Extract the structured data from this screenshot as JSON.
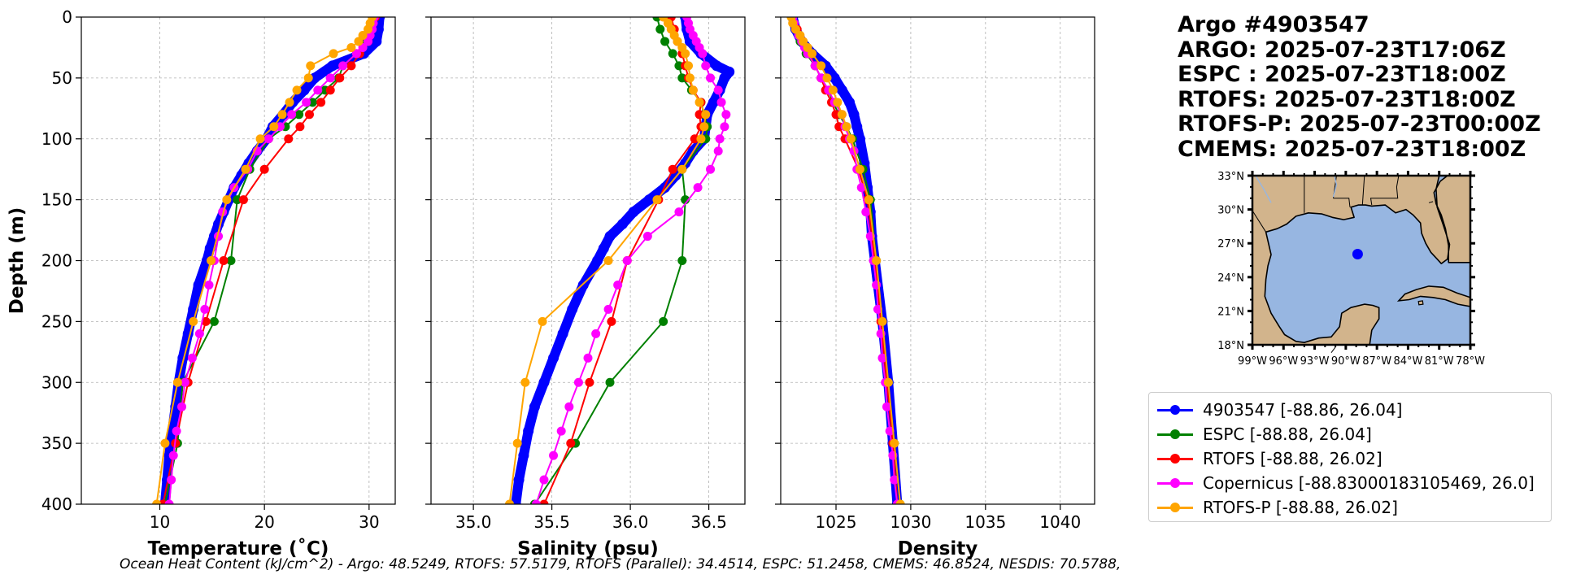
{
  "chart_data": [
    {
      "type": "line",
      "panel": "temperature",
      "xlabel": "Temperature (˚C)",
      "ylabel": "Depth (m)",
      "xlim": [
        2.5,
        32.5
      ],
      "ylim": [
        400,
        0
      ],
      "xticks": [
        10,
        20,
        30
      ],
      "yticks": [
        0,
        50,
        100,
        150,
        200,
        250,
        300,
        350,
        400
      ],
      "grid": true,
      "series": [
        {
          "name": "4903547",
          "color": "#0000ff",
          "style": "thick",
          "depth": [
            0,
            10,
            20,
            30,
            40,
            50,
            60,
            70,
            80,
            90,
            100,
            110,
            120,
            130,
            140,
            150,
            160,
            170,
            180,
            190,
            200,
            220,
            240,
            260,
            280,
            300,
            320,
            340,
            360,
            380,
            400
          ],
          "values": [
            31,
            30.9,
            30.7,
            29.5,
            26.5,
            24.8,
            23.8,
            22.7,
            21.8,
            20.8,
            20.2,
            19.3,
            18.5,
            17.8,
            17.1,
            16.6,
            16.1,
            15.6,
            15.2,
            14.8,
            14.5,
            13.7,
            13.2,
            12.7,
            12.2,
            11.8,
            11.5,
            11.2,
            10.9,
            10.7,
            10.5
          ]
        },
        {
          "name": "ESPC",
          "color": "#008000",
          "depth": [
            0,
            10,
            20,
            30,
            40,
            50,
            60,
            70,
            80,
            90,
            100,
            125,
            150,
            200,
            250,
            300,
            350,
            400
          ],
          "values": [
            30.5,
            30.1,
            29.7,
            28.8,
            27.5,
            27.1,
            25.8,
            24.6,
            23.3,
            22.0,
            20.4,
            18.6,
            17.4,
            16.8,
            15.2,
            12.2,
            11.7,
            10.5
          ]
        },
        {
          "name": "RTOFS",
          "color": "#ff0000",
          "depth": [
            0,
            10,
            20,
            30,
            40,
            50,
            60,
            70,
            80,
            90,
            100,
            125,
            150,
            200,
            250,
            300,
            350,
            400
          ],
          "values": [
            30.6,
            30.2,
            29.9,
            29.1,
            28.3,
            27.2,
            26.3,
            25.4,
            24.3,
            23.4,
            22.3,
            20.0,
            18.0,
            16.1,
            14.4,
            12.7,
            11.5,
            10.3
          ]
        },
        {
          "name": "Copernicus",
          "color": "#ff00ff",
          "depth": [
            0,
            5,
            10,
            15,
            20,
            25,
            30,
            40,
            50,
            60,
            70,
            80,
            90,
            100,
            110,
            125,
            140,
            160,
            180,
            200,
            220,
            240,
            260,
            280,
            300,
            320,
            340,
            360,
            380,
            400
          ],
          "values": [
            30.5,
            30.4,
            30.3,
            30.1,
            29.9,
            29.4,
            28.8,
            27.5,
            26.3,
            25.1,
            24.0,
            22.6,
            21.5,
            20.4,
            19.3,
            18.4,
            17.1,
            16.0,
            15.6,
            15.2,
            14.7,
            14.3,
            13.8,
            13.1,
            12.4,
            12.1,
            11.6,
            11.3,
            11.1,
            10.9
          ]
        },
        {
          "name": "RTOFS-P",
          "color": "#ffa500",
          "depth": [
            0,
            5,
            10,
            15,
            20,
            25,
            30,
            40,
            50,
            60,
            70,
            80,
            90,
            100,
            125,
            150,
            200,
            250,
            300,
            350,
            400
          ],
          "values": [
            30.3,
            30.1,
            29.9,
            29.4,
            29.0,
            28.3,
            26.6,
            24.4,
            24.2,
            23.1,
            22.4,
            21.7,
            20.9,
            19.6,
            18.2,
            16.4,
            14.9,
            13.2,
            11.7,
            10.5,
            9.7
          ]
        }
      ]
    },
    {
      "type": "line",
      "panel": "salinity",
      "xlabel": "Salinity (psu)",
      "xlim": [
        34.73,
        36.73
      ],
      "ylim": [
        400,
        0
      ],
      "xticks": [
        35.0,
        35.5,
        36.0,
        36.5
      ],
      "xtick_labels": [
        "35.0",
        "35.5",
        "36.0",
        "36.5"
      ],
      "grid": true,
      "series": [
        {
          "name": "4903547",
          "color": "#0000ff",
          "style": "thick",
          "depth": [
            0,
            10,
            20,
            30,
            40,
            45,
            50,
            60,
            70,
            80,
            90,
            100,
            110,
            120,
            130,
            140,
            150,
            160,
            170,
            180,
            190,
            200,
            220,
            240,
            260,
            280,
            300,
            320,
            340,
            360,
            380,
            400
          ],
          "values": [
            36.35,
            36.36,
            36.38,
            36.45,
            36.55,
            36.63,
            36.6,
            36.57,
            36.53,
            36.49,
            36.48,
            36.47,
            36.4,
            36.35,
            36.29,
            36.22,
            36.12,
            36.02,
            35.95,
            35.87,
            35.83,
            35.79,
            35.7,
            35.63,
            35.57,
            35.51,
            35.45,
            35.39,
            35.35,
            35.32,
            35.29,
            35.27
          ]
        },
        {
          "name": "ESPC",
          "color": "#008000",
          "depth": [
            0,
            10,
            20,
            30,
            40,
            50,
            60,
            70,
            80,
            90,
            100,
            125,
            150,
            200,
            250,
            300,
            350,
            400
          ],
          "values": [
            36.17,
            36.19,
            36.22,
            36.27,
            36.31,
            36.33,
            36.39,
            36.45,
            36.47,
            36.49,
            36.48,
            36.33,
            36.35,
            36.33,
            36.21,
            35.87,
            35.65,
            35.39
          ]
        },
        {
          "name": "RTOFS",
          "color": "#ff0000",
          "depth": [
            0,
            10,
            20,
            30,
            40,
            50,
            60,
            70,
            80,
            90,
            100,
            125,
            150,
            200,
            250,
            300,
            350,
            400
          ],
          "values": [
            36.26,
            36.28,
            36.3,
            36.33,
            36.35,
            36.37,
            36.4,
            36.45,
            36.44,
            36.45,
            36.41,
            36.27,
            36.18,
            35.98,
            35.88,
            35.74,
            35.62,
            35.45
          ]
        },
        {
          "name": "Copernicus",
          "color": "#ff00ff",
          "depth": [
            0,
            5,
            10,
            15,
            20,
            25,
            30,
            40,
            50,
            60,
            70,
            80,
            90,
            100,
            110,
            125,
            140,
            160,
            180,
            200,
            220,
            240,
            260,
            280,
            300,
            320,
            340,
            360,
            380,
            400
          ],
          "values": [
            36.36,
            36.37,
            36.38,
            36.4,
            36.42,
            36.44,
            36.46,
            36.48,
            36.51,
            36.56,
            36.58,
            36.61,
            36.6,
            36.57,
            36.56,
            36.51,
            36.43,
            36.31,
            36.11,
            35.98,
            35.92,
            35.86,
            35.78,
            35.73,
            35.67,
            35.61,
            35.56,
            35.51,
            35.45,
            35.4
          ]
        },
        {
          "name": "RTOFS-P",
          "color": "#ffa500",
          "depth": [
            0,
            5,
            10,
            15,
            20,
            25,
            30,
            40,
            50,
            60,
            70,
            80,
            90,
            100,
            125,
            150,
            200,
            250,
            300,
            350,
            400
          ],
          "values": [
            36.21,
            36.24,
            36.26,
            36.28,
            36.3,
            36.33,
            36.35,
            36.37,
            36.38,
            36.4,
            36.44,
            36.48,
            36.47,
            36.45,
            36.33,
            36.17,
            35.86,
            35.44,
            35.33,
            35.28,
            35.23
          ]
        }
      ]
    },
    {
      "type": "line",
      "panel": "density",
      "xlabel": "Density",
      "xlim": [
        1021.3,
        1042.3
      ],
      "ylim": [
        400,
        0
      ],
      "xticks": [
        1025,
        1030,
        1035,
        1040
      ],
      "grid": true,
      "series": [
        {
          "name": "4903547",
          "color": "#0000ff",
          "style": "thick",
          "depth": [
            0,
            10,
            20,
            30,
            40,
            50,
            60,
            70,
            80,
            90,
            100,
            120,
            140,
            160,
            180,
            200,
            250,
            300,
            350,
            400
          ],
          "values": [
            1022.1,
            1022.3,
            1022.7,
            1023.4,
            1024.3,
            1024.9,
            1025.4,
            1025.9,
            1026.2,
            1026.4,
            1026.6,
            1026.9,
            1027.1,
            1027.3,
            1027.4,
            1027.6,
            1028.1,
            1028.5,
            1028.8,
            1029.1
          ]
        },
        {
          "name": "ESPC",
          "color": "#008000",
          "depth": [
            0,
            10,
            20,
            30,
            40,
            50,
            60,
            70,
            80,
            90,
            100,
            125,
            150,
            200,
            250,
            300,
            350,
            400
          ],
          "values": [
            1022.1,
            1022.3,
            1022.6,
            1023.0,
            1023.6,
            1024.0,
            1024.5,
            1024.8,
            1025.2,
            1025.7,
            1026.1,
            1026.8,
            1027.3,
            1027.7,
            1028.1,
            1028.5,
            1028.9,
            1029.3
          ]
        },
        {
          "name": "RTOFS",
          "color": "#ff0000",
          "depth": [
            0,
            10,
            20,
            30,
            40,
            50,
            60,
            70,
            80,
            90,
            100,
            125,
            150,
            200,
            250,
            300,
            350,
            400
          ],
          "values": [
            1022.1,
            1022.4,
            1022.8,
            1023.2,
            1023.6,
            1024.0,
            1024.3,
            1024.7,
            1025.0,
            1025.2,
            1025.6,
            1026.5,
            1027.1,
            1027.6,
            1028.0,
            1028.4,
            1028.8,
            1029.1
          ]
        },
        {
          "name": "Copernicus",
          "color": "#ff00ff",
          "depth": [
            0,
            5,
            10,
            15,
            20,
            25,
            30,
            40,
            50,
            60,
            70,
            80,
            90,
            100,
            110,
            125,
            140,
            160,
            180,
            200,
            220,
            240,
            260,
            280,
            300,
            320,
            340,
            360,
            380,
            400
          ],
          "values": [
            1022.1,
            1022.2,
            1022.3,
            1022.5,
            1022.7,
            1022.9,
            1023.1,
            1023.6,
            1024.0,
            1024.5,
            1024.9,
            1025.4,
            1025.6,
            1025.9,
            1026.2,
            1026.4,
            1026.7,
            1027.0,
            1027.3,
            1027.5,
            1027.7,
            1027.8,
            1028.0,
            1028.1,
            1028.3,
            1028.4,
            1028.6,
            1028.8,
            1028.9,
            1029.1
          ]
        },
        {
          "name": "RTOFS-P",
          "color": "#ffa500",
          "depth": [
            0,
            5,
            10,
            15,
            20,
            25,
            30,
            40,
            50,
            60,
            70,
            80,
            90,
            100,
            125,
            150,
            200,
            250,
            300,
            350,
            400
          ],
          "values": [
            1022.0,
            1022.1,
            1022.3,
            1022.6,
            1022.8,
            1023.1,
            1023.4,
            1024.0,
            1024.4,
            1024.8,
            1025.1,
            1025.4,
            1025.7,
            1026.0,
            1026.6,
            1027.2,
            1027.7,
            1028.1,
            1028.5,
            1028.9,
            1029.3
          ]
        }
      ]
    }
  ],
  "title_lines": [
    "Argo #4903547",
    "ARGO: 2025-07-23T17:06Z",
    "ESPC : 2025-07-23T18:00Z",
    "RTOFS: 2025-07-23T18:00Z",
    "RTOFS-P: 2025-07-23T00:00Z",
    "CMEMS: 2025-07-23T18:00Z"
  ],
  "map": {
    "lat_labels": [
      "33°N",
      "30°N",
      "27°N",
      "24°N",
      "21°N",
      "18°N"
    ],
    "lon_labels": [
      "99°W",
      "96°W",
      "93°W",
      "90°W",
      "87°W",
      "84°W",
      "81°W",
      "78°W"
    ],
    "land_color": "#d2b48c",
    "ocean_color": "#97b6e1",
    "marker": {
      "lon": -88.86,
      "lat": 26.04,
      "color": "#0000ff"
    },
    "lon_range": [
      -99,
      -78
    ],
    "lat_range": [
      18,
      33
    ]
  },
  "legend": [
    {
      "label": "4903547 [-88.86, 26.04]",
      "color": "#0000ff"
    },
    {
      "label": "ESPC [-88.88, 26.04]",
      "color": "#008000"
    },
    {
      "label": "RTOFS [-88.88, 26.02]",
      "color": "#ff0000"
    },
    {
      "label": "Copernicus [-88.83000183105469, 26.0]",
      "color": "#ff00ff"
    },
    {
      "label": "RTOFS-P [-88.88, 26.02]",
      "color": "#ffa500"
    }
  ],
  "footer": "Ocean Heat Content (kJ/cm^2) - Argo: 48.5249,  RTOFS: 57.5179,  RTOFS (Parallel): 34.4514,  ESPC: 51.2458,  CMEMS: 46.8524,  NESDIS: 70.5788,"
}
